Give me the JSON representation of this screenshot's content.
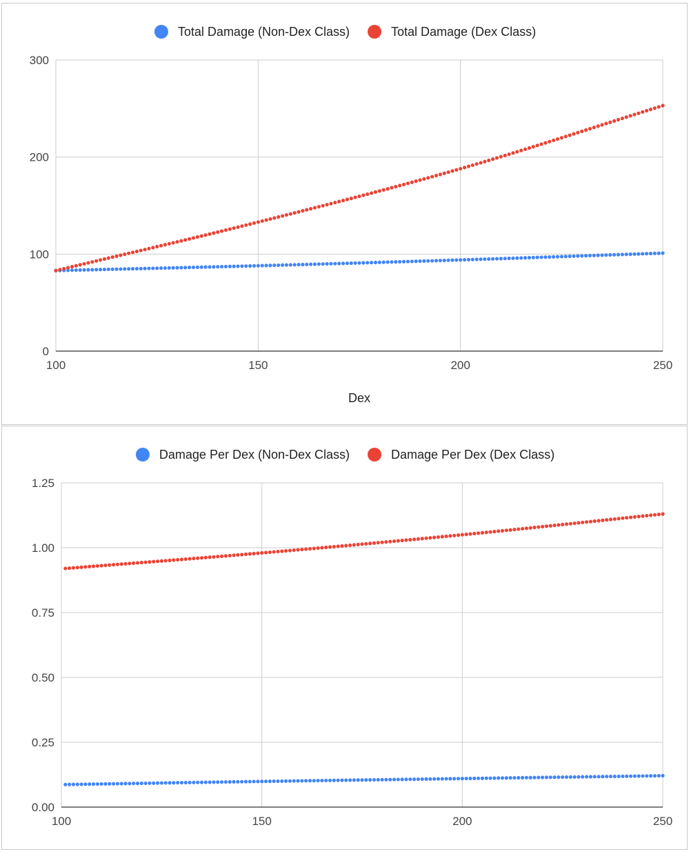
{
  "colors": {
    "non_dex": "#4285f4",
    "dex": "#ea4335",
    "grid": "#cccccc",
    "axis": "#333333",
    "text": "#222222",
    "tick_text": "#444444"
  },
  "chart_data": [
    {
      "type": "scatter",
      "title": "",
      "xlabel": "Dex",
      "ylabel": "",
      "xlim": [
        100,
        250
      ],
      "ylim": [
        0,
        300
      ],
      "x_ticks": [
        "100",
        "150",
        "200",
        "250"
      ],
      "y_ticks": [
        "0",
        "100",
        "200",
        "300"
      ],
      "legend": "top",
      "grid": true,
      "x_range": {
        "start": 100,
        "end": 250,
        "step": 1
      },
      "series": [
        {
          "name": "Total Damage (Non-Dex Class)",
          "color": "#4285f4",
          "points": [
            [
              100,
              83
            ],
            [
              150,
              88
            ],
            [
              200,
              94
            ],
            [
              250,
              101
            ]
          ]
        },
        {
          "name": "Total Damage (Dex Class)",
          "color": "#ea4335",
          "points": [
            [
              100,
              83
            ],
            [
              150,
              133
            ],
            [
              200,
              188
            ],
            [
              250,
              253
            ]
          ]
        }
      ]
    },
    {
      "type": "scatter",
      "title": "",
      "xlabel": "",
      "ylabel": "",
      "xlim": [
        100,
        250
      ],
      "ylim": [
        0,
        1.25
      ],
      "x_ticks": [
        "100",
        "150",
        "200",
        "250"
      ],
      "y_ticks": [
        "0.00",
        "0.25",
        "0.50",
        "0.75",
        "1.00",
        "1.25"
      ],
      "legend": "top",
      "grid": true,
      "x_range": {
        "start": 101,
        "end": 250,
        "step": 1
      },
      "series": [
        {
          "name": "Damage Per Dex (Non-Dex Class)",
          "color": "#4285f4",
          "points": [
            [
              101,
              0.087
            ],
            [
              150,
              0.099
            ],
            [
              200,
              0.11
            ],
            [
              250,
              0.121
            ]
          ]
        },
        {
          "name": "Damage Per Dex (Dex Class)",
          "color": "#ea4335",
          "points": [
            [
              101,
              0.92
            ],
            [
              150,
              0.98
            ],
            [
              200,
              1.05
            ],
            [
              250,
              1.13
            ]
          ]
        }
      ]
    }
  ]
}
